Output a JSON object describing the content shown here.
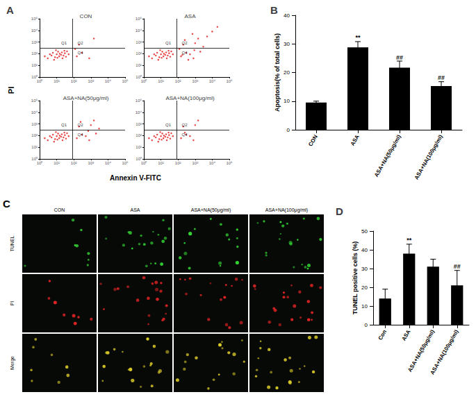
{
  "chart_data": [
    {
      "type": "scatter",
      "panel": "A",
      "xlabel": "Annexin V-FITC",
      "ylabel": "PI",
      "log": true,
      "grid": false,
      "color": "#e31a1c",
      "xlim": [
        1,
        100000
      ],
      "ylim": [
        1,
        100000
      ],
      "xticks": [
        {
          "value": 1,
          "label": "10⁰"
        },
        {
          "value": 10,
          "label": "10¹"
        },
        {
          "value": 100,
          "label": "10²"
        },
        {
          "value": 1000,
          "label": "10³"
        },
        {
          "value": 10000,
          "label": "10⁴"
        },
        {
          "value": 100000,
          "label": "10⁵"
        }
      ],
      "yticks": [
        {
          "value": 1,
          "label": "10⁰"
        },
        {
          "value": 10,
          "label": "10¹"
        },
        {
          "value": 100,
          "label": "10²"
        },
        {
          "value": 1000,
          "label": "10³"
        },
        {
          "value": 10000,
          "label": "10⁴"
        },
        {
          "value": 100000,
          "label": "10⁵"
        }
      ],
      "quadrant_x": 80,
      "quadrant_y": 300,
      "quadrant_labels": [
        "Q1",
        "Q2",
        "Q4"
      ],
      "series": [
        {
          "name": "CON",
          "values": [
            [
              3,
              40
            ],
            [
              5,
              70
            ],
            [
              6,
              120
            ],
            [
              8,
              50
            ],
            [
              10,
              90
            ],
            [
              12,
              150
            ],
            [
              14,
              60
            ],
            [
              15,
              100
            ],
            [
              18,
              80
            ],
            [
              20,
              130
            ],
            [
              25,
              70
            ],
            [
              30,
              110
            ],
            [
              35,
              55
            ],
            [
              40,
              160
            ],
            [
              4,
              90
            ],
            [
              7,
              30
            ],
            [
              9,
              200
            ],
            [
              22,
              40
            ],
            [
              28,
              180
            ],
            [
              50,
              90
            ],
            [
              2,
              60
            ],
            [
              11,
              45
            ],
            [
              150,
              60
            ],
            [
              300,
              120
            ],
            [
              800,
              40
            ],
            [
              200,
              600
            ],
            [
              1500,
              2000
            ],
            [
              120,
              250
            ]
          ]
        },
        {
          "name": "ASA",
          "values": [
            [
              3,
              40
            ],
            [
              5,
              70
            ],
            [
              6,
              120
            ],
            [
              8,
              50
            ],
            [
              10,
              90
            ],
            [
              12,
              150
            ],
            [
              14,
              60
            ],
            [
              15,
              100
            ],
            [
              18,
              80
            ],
            [
              20,
              130
            ],
            [
              25,
              70
            ],
            [
              30,
              110
            ],
            [
              35,
              55
            ],
            [
              40,
              160
            ],
            [
              4,
              90
            ],
            [
              7,
              30
            ],
            [
              9,
              200
            ],
            [
              22,
              40
            ],
            [
              28,
              180
            ],
            [
              50,
              90
            ],
            [
              2,
              60
            ],
            [
              11,
              45
            ],
            [
              150,
              60
            ],
            [
              300,
              120
            ],
            [
              800,
              40
            ],
            [
              200,
              600
            ],
            [
              1500,
              2000
            ],
            [
              120,
              250
            ],
            [
              500,
              90
            ],
            [
              2000,
              150
            ],
            [
              400,
              30
            ],
            [
              1000,
              800
            ],
            [
              5000,
              3000
            ],
            [
              10000,
              8000
            ],
            [
              3000,
              400
            ],
            [
              250,
              1500
            ],
            [
              700,
              5000
            ],
            [
              20000,
              20000
            ],
            [
              900,
              200
            ],
            [
              180,
              80
            ]
          ]
        },
        {
          "name": "ASA+NA(50μg/ml)",
          "values": [
            [
              3,
              40
            ],
            [
              5,
              70
            ],
            [
              6,
              120
            ],
            [
              8,
              50
            ],
            [
              10,
              90
            ],
            [
              12,
              150
            ],
            [
              14,
              60
            ],
            [
              15,
              100
            ],
            [
              18,
              80
            ],
            [
              20,
              130
            ],
            [
              25,
              70
            ],
            [
              30,
              110
            ],
            [
              35,
              55
            ],
            [
              40,
              160
            ],
            [
              4,
              90
            ],
            [
              7,
              30
            ],
            [
              9,
              200
            ],
            [
              22,
              40
            ],
            [
              28,
              180
            ],
            [
              50,
              90
            ],
            [
              2,
              60
            ],
            [
              11,
              45
            ],
            [
              150,
              60
            ],
            [
              300,
              120
            ],
            [
              800,
              40
            ],
            [
              200,
              600
            ],
            [
              1500,
              2000
            ],
            [
              500,
              90
            ],
            [
              2000,
              150
            ],
            [
              1000,
              800
            ],
            [
              3000,
              400
            ],
            [
              250,
              1500
            ],
            [
              700,
              250
            ]
          ]
        },
        {
          "name": "ASA+NA(100μg/ml)",
          "values": [
            [
              3,
              40
            ],
            [
              5,
              70
            ],
            [
              6,
              120
            ],
            [
              8,
              50
            ],
            [
              10,
              90
            ],
            [
              12,
              150
            ],
            [
              14,
              60
            ],
            [
              15,
              100
            ],
            [
              18,
              80
            ],
            [
              20,
              130
            ],
            [
              25,
              70
            ],
            [
              30,
              110
            ],
            [
              35,
              55
            ],
            [
              40,
              160
            ],
            [
              4,
              90
            ],
            [
              7,
              30
            ],
            [
              9,
              200
            ],
            [
              22,
              40
            ],
            [
              28,
              180
            ],
            [
              50,
              90
            ],
            [
              2,
              60
            ],
            [
              11,
              45
            ],
            [
              150,
              60
            ],
            [
              300,
              120
            ],
            [
              800,
              40
            ],
            [
              200,
              600
            ],
            [
              1500,
              2000
            ],
            [
              500,
              90
            ],
            [
              1000,
              800
            ],
            [
              250,
              180
            ]
          ]
        }
      ]
    },
    {
      "type": "bar",
      "panel": "B",
      "ylabel": "Apoptosis(% of total cells)",
      "grid": false,
      "color": "#000000",
      "categories": [
        "CON",
        "ASA",
        "ASA+NA(50μg/ml)",
        "ASA+NA(100μg/ml)"
      ],
      "values": [
        9.5,
        28.8,
        21.7,
        15.3
      ],
      "errors": [
        0.5,
        2.0,
        2.3,
        1.5
      ],
      "annotations": [
        null,
        "**",
        "##",
        "##"
      ],
      "ylim": [
        0,
        40
      ],
      "yticks": [
        0,
        10,
        20,
        30,
        40
      ]
    },
    {
      "type": "bar",
      "panel": "D",
      "ylabel": "TUNEL positive cells (%)",
      "grid": false,
      "color": "#000000",
      "categories": [
        "Con",
        "ASA",
        "ASA+NA(50μg/ml)",
        "ASA+NA(100μg/ml)"
      ],
      "values": [
        14,
        38,
        31,
        21
      ],
      "errors": [
        5,
        5,
        4,
        8
      ],
      "annotations": [
        null,
        "**",
        null,
        "##"
      ],
      "ylim": [
        0,
        50
      ],
      "yticks": [
        0,
        10,
        20,
        30,
        40,
        50
      ]
    }
  ],
  "image_panel": {
    "panel": "C",
    "columns": [
      "CON",
      "ASA",
      "ASA+NA(50μg/ml)",
      "ASA+NA(100μg/ml)"
    ],
    "rows": [
      "TUNEL",
      "PI",
      "Merge"
    ],
    "colors": [
      "#33d433",
      "#e02424",
      "#d8c828"
    ]
  }
}
